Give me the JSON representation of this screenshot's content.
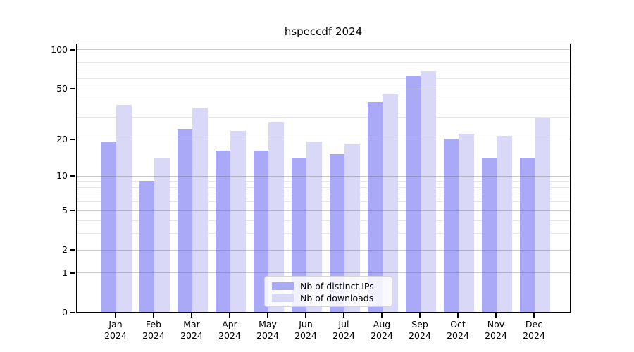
{
  "title": "hspeccdf 2024",
  "chart_data": {
    "type": "bar",
    "title": "hspeccdf 2024",
    "categories": [
      "Jan 2024",
      "Feb 2024",
      "Mar 2024",
      "Apr 2024",
      "May 2024",
      "Jun 2024",
      "Jul 2024",
      "Aug 2024",
      "Sep 2024",
      "Oct 2024",
      "Nov 2024",
      "Dec 2024"
    ],
    "series": [
      {
        "name": "Nb of distinct IPs",
        "color": "#a9a9f7",
        "values": [
          19,
          9,
          24,
          16,
          16,
          14,
          15,
          39,
          62,
          20,
          14,
          14
        ]
      },
      {
        "name": "Nb of downloads",
        "color": "#d9d9f7",
        "values": [
          37,
          14,
          35,
          23,
          27,
          19,
          18,
          45,
          68,
          22,
          21,
          29
        ]
      }
    ],
    "xlabel": "",
    "ylabel": "",
    "yscale": "log1p",
    "ylim": [
      0,
      112
    ],
    "y_major_ticks": [
      100,
      50,
      20,
      10,
      5,
      2,
      1,
      0
    ],
    "y_minor_ticks": [
      90,
      80,
      70,
      60,
      40,
      30,
      9,
      8,
      7,
      6,
      4,
      3
    ],
    "grid": true,
    "legend_position": "lower center"
  }
}
